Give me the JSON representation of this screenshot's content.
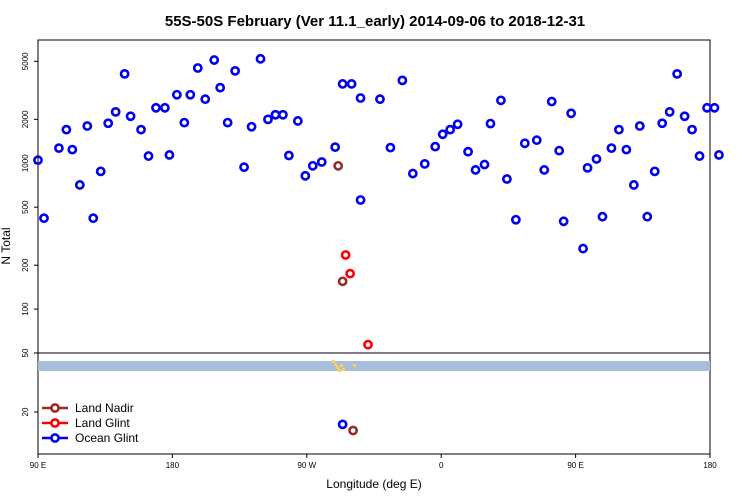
{
  "chart_data": {
    "type": "scatter",
    "title": "55S-50S February (Ver 11.1_early)   2014-09-06 to 2018-12-31",
    "xlabel": "Longitude (deg E)",
    "ylabel": "N Total",
    "x_ticks": [
      {
        "value": 90,
        "label": "90 E"
      },
      {
        "value": 180,
        "label": "180"
      },
      {
        "value": 270,
        "label": "90 W"
      },
      {
        "value": 360,
        "label": "0"
      },
      {
        "value": 450,
        "label": "90 E"
      },
      {
        "value": 540,
        "label": "180"
      }
    ],
    "xlim": [
      90,
      540
    ],
    "y_scale": "log",
    "ylim": [
      50,
      7000
    ],
    "y_ticks": [
      {
        "value": 100,
        "label": "100"
      },
      {
        "value": 200,
        "label": "200"
      },
      {
        "value": 500,
        "label": "500"
      },
      {
        "value": 1000,
        "label": "1000"
      },
      {
        "value": 2000,
        "label": "2000"
      },
      {
        "value": 5000,
        "label": "5000"
      }
    ],
    "lower_panel": {
      "y_ticks": [
        {
          "value": 50,
          "label": "50"
        },
        {
          "value": 20,
          "label": "20"
        }
      ],
      "band_color": "#a8bddc",
      "band_marker_color": "#ffd24d"
    },
    "legend": {
      "placement": "bottom-left",
      "entries": [
        {
          "label": "Land Nadir",
          "color": "#9b2a2a"
        },
        {
          "label": "Land Glint",
          "color": "#ff0000"
        },
        {
          "label": "Ocean Glint",
          "color": "#0000ee"
        }
      ]
    },
    "series": [
      {
        "name": "Ocean Glint",
        "color": "#0000ee",
        "points": [
          [
            90,
            1050
          ],
          [
            94,
            420
          ],
          [
            104,
            1270
          ],
          [
            109,
            1700
          ],
          [
            113,
            1240
          ],
          [
            118,
            710
          ],
          [
            123,
            1800
          ],
          [
            127,
            420
          ],
          [
            132,
            880
          ],
          [
            137,
            1880
          ],
          [
            142,
            2250
          ],
          [
            148,
            4100
          ],
          [
            152,
            2100
          ],
          [
            159,
            1700
          ],
          [
            164,
            1120
          ],
          [
            169,
            2400
          ],
          [
            175,
            2400
          ],
          [
            178,
            1140
          ],
          [
            183,
            2950
          ],
          [
            188,
            1900
          ],
          [
            192,
            2950
          ],
          [
            197,
            4500
          ],
          [
            202,
            2750
          ],
          [
            208,
            5100
          ],
          [
            212,
            3300
          ],
          [
            217,
            1900
          ],
          [
            222,
            4300
          ],
          [
            228,
            940
          ],
          [
            233,
            1780
          ],
          [
            239,
            5200
          ],
          [
            244,
            2000
          ],
          [
            249,
            2150
          ],
          [
            254,
            2150
          ],
          [
            258,
            1130
          ],
          [
            264,
            1950
          ],
          [
            269,
            820
          ],
          [
            274,
            960
          ],
          [
            280,
            1020
          ],
          [
            289,
            1290
          ],
          [
            306,
            560
          ],
          [
            319,
            2750
          ],
          [
            326,
            1280
          ],
          [
            334,
            3700
          ],
          [
            341,
            850
          ],
          [
            349,
            990
          ],
          [
            356,
            1300
          ],
          [
            361,
            1580
          ],
          [
            366,
            1700
          ],
          [
            371,
            1850
          ],
          [
            378,
            1200
          ],
          [
            383,
            900
          ],
          [
            389,
            980
          ],
          [
            393,
            1870
          ],
          [
            400,
            2700
          ],
          [
            404,
            780
          ],
          [
            410,
            410
          ],
          [
            416,
            1370
          ],
          [
            424,
            1440
          ],
          [
            429,
            900
          ],
          [
            434,
            2650
          ],
          [
            439,
            1220
          ],
          [
            442,
            400
          ],
          [
            447,
            2200
          ],
          [
            455,
            260
          ],
          [
            458,
            930
          ],
          [
            464,
            1070
          ],
          [
            468,
            430
          ],
          [
            474,
            1270
          ],
          [
            479,
            1700
          ],
          [
            484,
            1240
          ],
          [
            489,
            710
          ],
          [
            493,
            1800
          ],
          [
            498,
            430
          ],
          [
            503,
            880
          ],
          [
            508,
            1880
          ],
          [
            513,
            2250
          ],
          [
            518,
            4100
          ],
          [
            523,
            2100
          ],
          [
            528,
            1700
          ],
          [
            533,
            1120
          ],
          [
            538,
            2400
          ],
          [
            543,
            2400
          ],
          [
            546,
            1140
          ]
        ]
      },
      {
        "name": "Land Glint",
        "color": "#ff0000",
        "points": [
          [
            296,
            235
          ],
          [
            299,
            175
          ],
          [
            311,
            57
          ]
        ]
      },
      {
        "name": "Land Nadir",
        "color": "#9b2a2a",
        "points": [
          [
            291,
            960
          ],
          [
            294,
            155
          ]
        ]
      },
      {
        "name": "Ocean Glint",
        "color": "#0000ee",
        "points": [
          [
            294,
            3500
          ],
          [
            300,
            3500
          ],
          [
            306,
            2800
          ]
        ],
        "note_hidden": true
      }
    ],
    "lower_points": [
      {
        "series": "Ocean Glint",
        "color": "#0000ee",
        "x": 294,
        "y": 16.5
      },
      {
        "series": "Land Nadir",
        "color": "#9b2a2a",
        "x": 301,
        "y": 15
      }
    ]
  }
}
